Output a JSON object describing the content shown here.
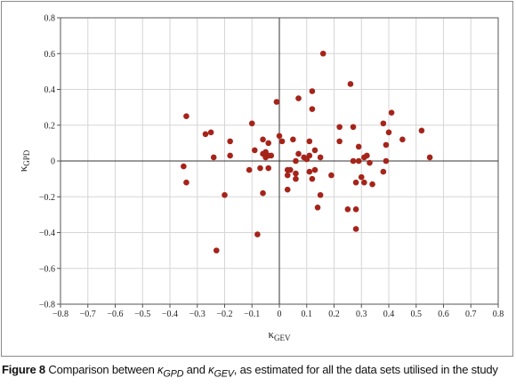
{
  "chart_data": {
    "type": "scatter",
    "xlabel_symbol": "κ",
    "xlabel_sub": "GEV",
    "ylabel_symbol": "κ",
    "ylabel_sub": "GPD",
    "xlim": [
      -0.8,
      0.8
    ],
    "ylim": [
      -0.8,
      0.8
    ],
    "xticks": [
      -0.8,
      -0.7,
      -0.6,
      -0.5,
      -0.4,
      -0.3,
      -0.2,
      -0.1,
      0,
      0.1,
      0.2,
      0.3,
      0.4,
      0.5,
      0.6,
      0.7,
      0.8
    ],
    "yticks": [
      -0.8,
      -0.6,
      -0.4,
      -0.2,
      0,
      0.2,
      0.4,
      0.6,
      0.8
    ],
    "grid": true,
    "legend": "none",
    "marker_color": "#a5241a",
    "points": [
      [
        0.16,
        0.6
      ],
      [
        0.26,
        0.43
      ],
      [
        0.12,
        0.39
      ],
      [
        0.07,
        0.35
      ],
      [
        -0.01,
        0.33
      ],
      [
        0.12,
        0.29
      ],
      [
        0.41,
        0.27
      ],
      [
        -0.34,
        0.25
      ],
      [
        -0.1,
        0.21
      ],
      [
        0.38,
        0.21
      ],
      [
        0.22,
        0.19
      ],
      [
        0.27,
        0.19
      ],
      [
        0.4,
        0.16
      ],
      [
        0.52,
        0.17
      ],
      [
        -0.25,
        0.16
      ],
      [
        -0.27,
        0.15
      ],
      [
        0.45,
        0.12
      ],
      [
        0.22,
        0.11
      ],
      [
        0.11,
        0.11
      ],
      [
        0.0,
        0.14
      ],
      [
        0.01,
        0.11
      ],
      [
        -0.06,
        0.12
      ],
      [
        -0.04,
        0.1
      ],
      [
        -0.18,
        0.11
      ],
      [
        0.05,
        0.12
      ],
      [
        0.39,
        0.09
      ],
      [
        0.29,
        0.08
      ],
      [
        -0.09,
        0.06
      ],
      [
        -0.05,
        0.05
      ],
      [
        0.13,
        0.06
      ],
      [
        -0.06,
        0.04
      ],
      [
        -0.04,
        0.03
      ],
      [
        -0.03,
        0.03
      ],
      [
        0.07,
        0.04
      ],
      [
        0.11,
        0.03
      ],
      [
        -0.05,
        0.02
      ],
      [
        -0.18,
        0.03
      ],
      [
        -0.24,
        0.02
      ],
      [
        0.09,
        0.02
      ],
      [
        0.1,
        0.01
      ],
      [
        0.15,
        0.02
      ],
      [
        0.55,
        0.02
      ],
      [
        0.31,
        0.02
      ],
      [
        0.32,
        0.03
      ],
      [
        0.06,
        0.0
      ],
      [
        0.27,
        0.0
      ],
      [
        0.29,
        0.0
      ],
      [
        0.33,
        -0.01
      ],
      [
        0.39,
        0.0
      ],
      [
        -0.07,
        -0.04
      ],
      [
        -0.04,
        -0.04
      ],
      [
        -0.35,
        -0.03
      ],
      [
        0.03,
        -0.05
      ],
      [
        0.04,
        -0.05
      ],
      [
        0.06,
        -0.07
      ],
      [
        -0.11,
        -0.05
      ],
      [
        0.13,
        -0.05
      ],
      [
        0.19,
        -0.08
      ],
      [
        0.38,
        -0.06
      ],
      [
        0.3,
        -0.09
      ],
      [
        0.03,
        -0.08
      ],
      [
        0.11,
        -0.06
      ],
      [
        0.12,
        -0.1
      ],
      [
        0.06,
        -0.1
      ],
      [
        0.28,
        -0.12
      ],
      [
        0.31,
        -0.12
      ],
      [
        0.34,
        -0.13
      ],
      [
        -0.34,
        -0.12
      ],
      [
        0.03,
        -0.16
      ],
      [
        -0.06,
        -0.18
      ],
      [
        0.15,
        -0.19
      ],
      [
        -0.2,
        -0.19
      ],
      [
        0.14,
        -0.26
      ],
      [
        0.25,
        -0.27
      ],
      [
        0.28,
        -0.27
      ],
      [
        0.28,
        -0.38
      ],
      [
        -0.08,
        -0.41
      ],
      [
        -0.23,
        -0.5
      ]
    ]
  },
  "caption": {
    "label": "Figure 8",
    "text_before": " Comparison between ",
    "kappa": "κ",
    "sub1": "GPD",
    "text_middle": " and ",
    "sub2": "GEV",
    "text_after": ", as estimated for all the data sets utilised in the study"
  }
}
